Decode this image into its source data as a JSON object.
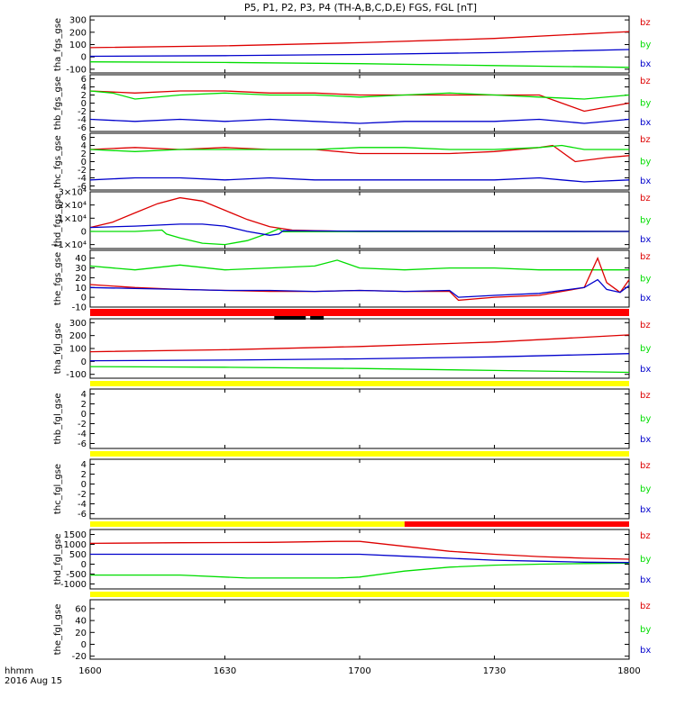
{
  "title": "P5, P1, P2, P3, P4 (TH-A,B,C,D,E) FGS, FGL [nT]",
  "time_axis": {
    "label_top": "hhmm",
    "label_bottom": "2016 Aug 15",
    "ticks": [
      "1600",
      "1630",
      "1700",
      "1730",
      "1800"
    ],
    "tick_minutes": [
      0,
      30,
      60,
      90,
      120
    ]
  },
  "colors": {
    "bx": "#0000cc",
    "by": "#00dd00",
    "bz": "#dd0000",
    "status_red": "#ff0000",
    "status_yellow": "#ffff00",
    "status_black": "#000000"
  },
  "chart_data": [
    {
      "type": "line",
      "ylabel": "tha_fgs_gse",
      "ylim": [
        -130,
        330
      ],
      "yticks": [
        "300",
        "200",
        "100",
        "0",
        "-100"
      ],
      "ytick_values": [
        300,
        200,
        100,
        0,
        -100
      ],
      "legend": [
        "bz",
        "by",
        "bx"
      ],
      "series": [
        {
          "name": "bz",
          "x": [
            0,
            30,
            60,
            90,
            120
          ],
          "values": [
            75,
            90,
            115,
            150,
            205
          ]
        },
        {
          "name": "by",
          "x": [
            0,
            30,
            60,
            90,
            120
          ],
          "values": [
            -40,
            -45,
            -55,
            -70,
            -85
          ]
        },
        {
          "name": "bx",
          "x": [
            0,
            30,
            60,
            90,
            120
          ],
          "values": [
            5,
            10,
            20,
            35,
            60
          ]
        }
      ]
    },
    {
      "type": "line",
      "ylabel": "thb_fgs_gse",
      "ylim": [
        -7,
        7
      ],
      "yticks": [
        "6",
        "4",
        "2",
        "0",
        "-2",
        "-4",
        "-6"
      ],
      "ytick_values": [
        6,
        4,
        2,
        0,
        -2,
        -4,
        -6
      ],
      "legend": [
        "bz",
        "by",
        "bx"
      ],
      "series": [
        {
          "name": "bz",
          "x": [
            0,
            10,
            20,
            30,
            40,
            50,
            60,
            70,
            80,
            90,
            100,
            105,
            110,
            115,
            120
          ],
          "values": [
            3,
            2.5,
            3,
            3,
            2.5,
            2.5,
            2,
            2,
            2,
            2,
            2,
            0,
            -2,
            -1,
            0
          ]
        },
        {
          "name": "by",
          "x": [
            0,
            5,
            10,
            20,
            30,
            40,
            50,
            60,
            70,
            80,
            90,
            100,
            110,
            120
          ],
          "values": [
            3,
            2.5,
            1,
            2,
            2.5,
            2,
            2,
            1.5,
            2,
            2.5,
            2,
            1.5,
            1,
            2
          ]
        },
        {
          "name": "bx",
          "x": [
            0,
            10,
            20,
            30,
            40,
            50,
            60,
            70,
            80,
            90,
            100,
            110,
            120
          ],
          "values": [
            -4,
            -4.5,
            -4,
            -4.5,
            -4,
            -4.5,
            -5,
            -4.5,
            -4.5,
            -4.5,
            -4,
            -5,
            -4
          ]
        }
      ]
    },
    {
      "type": "line",
      "ylabel": "thc_fgs_gse",
      "ylim": [
        -7,
        7
      ],
      "yticks": [
        "6",
        "4",
        "2",
        "0",
        "-2",
        "-4",
        "-6"
      ],
      "ytick_values": [
        6,
        4,
        2,
        0,
        -2,
        -4,
        -6
      ],
      "legend": [
        "bz",
        "by",
        "bx"
      ],
      "series": [
        {
          "name": "bz",
          "x": [
            0,
            10,
            20,
            30,
            40,
            50,
            60,
            70,
            80,
            90,
            100,
            103,
            108,
            115,
            120
          ],
          "values": [
            3,
            3.5,
            3,
            3.5,
            3,
            3,
            2,
            2,
            2,
            2.5,
            3.5,
            4,
            0,
            1,
            1.5
          ]
        },
        {
          "name": "by",
          "x": [
            0,
            10,
            20,
            30,
            40,
            50,
            60,
            70,
            80,
            90,
            100,
            105,
            110,
            120
          ],
          "values": [
            3,
            2.5,
            3,
            3,
            3,
            3,
            3.5,
            3.5,
            3,
            3,
            3.5,
            4,
            3,
            3
          ]
        },
        {
          "name": "bx",
          "x": [
            0,
            10,
            20,
            30,
            40,
            50,
            60,
            70,
            80,
            90,
            100,
            105,
            110,
            120
          ],
          "values": [
            -4.5,
            -4,
            -4,
            -4.5,
            -4,
            -4.5,
            -4.5,
            -4.5,
            -4.5,
            -4.5,
            -4,
            -4.5,
            -5,
            -4.5
          ]
        }
      ]
    },
    {
      "type": "line",
      "ylabel": "thd_fgs_gse",
      "ylim": [
        -13000,
        30000
      ],
      "yticks": [
        "3×10⁴",
        "2×10⁴",
        "1×10⁴",
        "0",
        "−1×10⁴"
      ],
      "ytick_values": [
        30000,
        20000,
        10000,
        0,
        -10000
      ],
      "legend": [
        "bz",
        "by",
        "bx"
      ],
      "series": [
        {
          "name": "bz",
          "x": [
            0,
            5,
            10,
            15,
            20,
            25,
            30,
            35,
            40,
            45,
            50,
            55,
            60,
            120
          ],
          "values": [
            3000,
            7000,
            14000,
            21000,
            25500,
            23000,
            16000,
            9000,
            3500,
            1000,
            500,
            200,
            0,
            0
          ]
        },
        {
          "name": "by",
          "x": [
            0,
            10,
            16,
            17,
            20,
            25,
            30,
            35,
            40,
            42,
            43,
            60,
            120
          ],
          "values": [
            0,
            0,
            1000,
            -2000,
            -5000,
            -9000,
            -10000,
            -7000,
            -1000,
            2000,
            -300,
            -200,
            0
          ]
        },
        {
          "name": "bx",
          "x": [
            0,
            10,
            20,
            25,
            30,
            35,
            40,
            42,
            43,
            60,
            120
          ],
          "values": [
            3000,
            4000,
            5500,
            5500,
            4000,
            0,
            -3000,
            -2000,
            500,
            200,
            0
          ]
        }
      ]
    },
    {
      "type": "line",
      "ylabel": "the_fgs_gse",
      "ylim": [
        -10,
        48
      ],
      "yticks": [
        "40",
        "30",
        "20",
        "10",
        "0",
        "-10"
      ],
      "ytick_values": [
        40,
        30,
        20,
        10,
        0,
        -10
      ],
      "legend": [
        "bz",
        "by",
        "bx"
      ],
      "series": [
        {
          "name": "by",
          "x": [
            0,
            10,
            20,
            30,
            40,
            50,
            55,
            60,
            70,
            80,
            90,
            100,
            110,
            120
          ],
          "values": [
            32,
            28,
            33,
            28,
            30,
            32,
            38,
            30,
            28,
            30,
            30,
            28,
            28,
            28
          ]
        },
        {
          "name": "bz",
          "x": [
            0,
            10,
            20,
            30,
            40,
            50,
            60,
            70,
            80,
            82,
            90,
            100,
            110,
            113,
            115,
            118,
            120
          ],
          "values": [
            13,
            10,
            8,
            7,
            6,
            6,
            7,
            6,
            6,
            -3,
            0,
            2,
            10,
            40,
            15,
            5,
            18
          ]
        },
        {
          "name": "bx",
          "x": [
            0,
            10,
            20,
            30,
            40,
            50,
            60,
            70,
            80,
            82,
            90,
            100,
            110,
            113,
            115,
            118,
            120
          ],
          "values": [
            10,
            9,
            8,
            7,
            7,
            6,
            7,
            6,
            7,
            0,
            2,
            4,
            10,
            18,
            8,
            5,
            12
          ]
        }
      ]
    },
    {
      "type": "line",
      "ylabel": "tha_fgl_gse",
      "ylim": [
        -130,
        330
      ],
      "yticks": [
        "300",
        "200",
        "100",
        "0",
        "-100"
      ],
      "ytick_values": [
        300,
        200,
        100,
        0,
        -100
      ],
      "legend": [
        "bz",
        "by",
        "bx"
      ],
      "series": [
        {
          "name": "bz",
          "x": [
            0,
            30,
            60,
            90,
            120
          ],
          "values": [
            75,
            90,
            115,
            150,
            205
          ]
        },
        {
          "name": "by",
          "x": [
            0,
            30,
            60,
            90,
            120
          ],
          "values": [
            -40,
            -45,
            -55,
            -70,
            -85
          ]
        },
        {
          "name": "bx",
          "x": [
            0,
            30,
            60,
            90,
            120
          ],
          "values": [
            5,
            10,
            20,
            35,
            60
          ]
        }
      ]
    },
    {
      "type": "line",
      "ylabel": "thb_fgl_gse",
      "ylim": [
        -7,
        5
      ],
      "yticks": [
        "4",
        "2",
        "0",
        "-2",
        "-4",
        "-6"
      ],
      "ytick_values": [
        4,
        2,
        0,
        -2,
        -4,
        -6
      ],
      "legend": [
        "bz",
        "by",
        "bx"
      ],
      "series": []
    },
    {
      "type": "line",
      "ylabel": "thc_fgl_gse",
      "ylim": [
        -7,
        5
      ],
      "yticks": [
        "4",
        "2",
        "0",
        "-2",
        "-4",
        "-6"
      ],
      "ytick_values": [
        4,
        2,
        0,
        -2,
        -4,
        -6
      ],
      "legend": [
        "bz",
        "by",
        "bx"
      ],
      "series": []
    },
    {
      "type": "line",
      "ylabel": "thd_fgl_gse",
      "ylim": [
        -1250,
        1750
      ],
      "yticks": [
        "1500",
        "1000",
        "500",
        "0",
        "-500",
        "-1000"
      ],
      "ytick_values": [
        1500,
        1000,
        500,
        0,
        -500,
        -1000
      ],
      "legend": [
        "bz",
        "by",
        "bx"
      ],
      "series": [
        {
          "name": "bz",
          "x": [
            0,
            20,
            40,
            55,
            60,
            70,
            80,
            90,
            100,
            110,
            120
          ],
          "values": [
            1050,
            1080,
            1100,
            1150,
            1150,
            900,
            650,
            500,
            380,
            300,
            250
          ]
        },
        {
          "name": "by",
          "x": [
            0,
            20,
            35,
            55,
            60,
            70,
            80,
            90,
            100,
            110,
            120
          ],
          "values": [
            -550,
            -550,
            -700,
            -700,
            -650,
            -350,
            -150,
            -50,
            0,
            30,
            50
          ]
        },
        {
          "name": "bx",
          "x": [
            0,
            20,
            40,
            60,
            70,
            80,
            90,
            100,
            110,
            120
          ],
          "values": [
            500,
            500,
            500,
            500,
            400,
            300,
            200,
            150,
            100,
            80
          ]
        }
      ]
    },
    {
      "type": "line",
      "ylabel": "the_fgl_gse",
      "ylim": [
        -25,
        75
      ],
      "yticks": [
        "60",
        "40",
        "20",
        "0",
        "-20"
      ],
      "ytick_values": [
        60,
        40,
        20,
        0,
        -20
      ],
      "legend": [
        "bz",
        "by",
        "bx"
      ],
      "series": []
    }
  ],
  "status_bars": [
    {
      "after_panel": 4,
      "segments": [
        {
          "from": 0,
          "to": 120,
          "color": "red"
        }
      ],
      "black_marks": [
        [
          41,
          48
        ],
        [
          49,
          52
        ]
      ]
    },
    {
      "after_panel": 5,
      "segments": [
        {
          "from": 0,
          "to": 120,
          "color": "yellow"
        }
      ],
      "black_marks": []
    },
    {
      "after_panel": 6,
      "segments": [
        {
          "from": 0,
          "to": 120,
          "color": "yellow"
        }
      ],
      "black_marks": []
    },
    {
      "after_panel": 7,
      "segments": [
        {
          "from": 0,
          "to": 70,
          "color": "yellow"
        },
        {
          "from": 70,
          "to": 120,
          "color": "red"
        }
      ],
      "black_marks": []
    },
    {
      "after_panel": 8,
      "segments": [
        {
          "from": 0,
          "to": 120,
          "color": "yellow"
        }
      ],
      "black_marks": []
    }
  ]
}
